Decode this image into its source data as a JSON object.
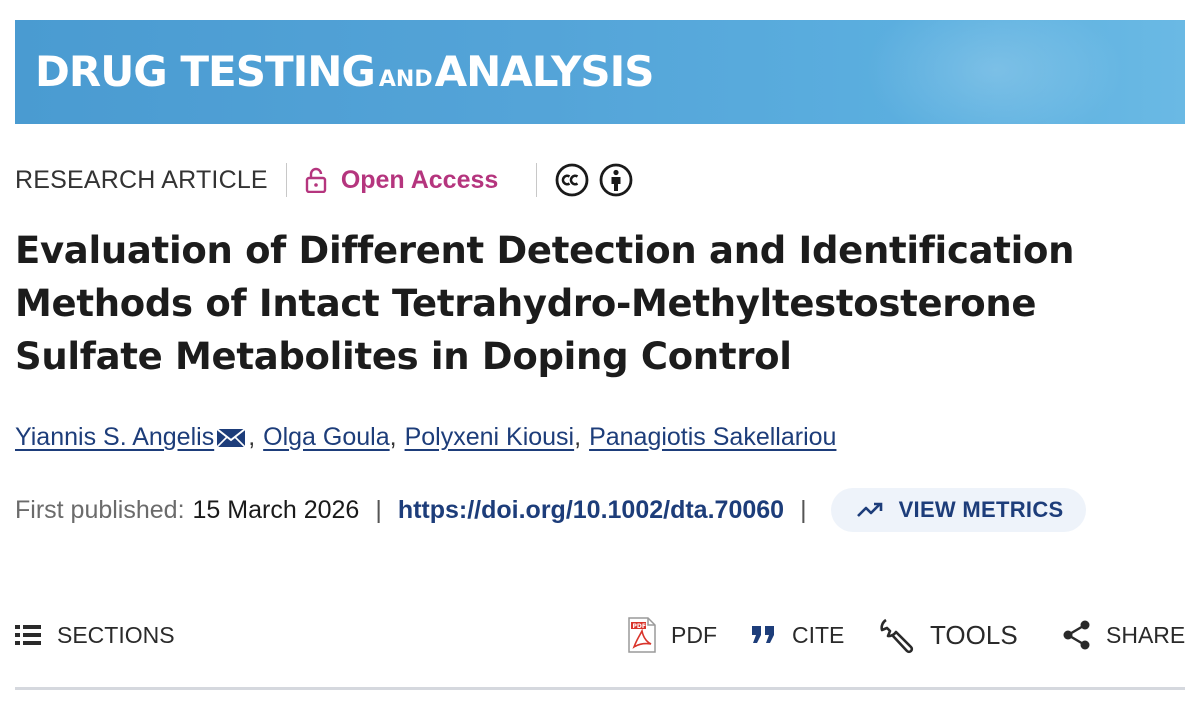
{
  "journal": {
    "title_part1": "DRUG TESTING",
    "title_part2": "AND",
    "title_part3": "ANALYSIS",
    "banner_color": "#54a4d8"
  },
  "meta": {
    "article_type": "RESEARCH ARTICLE",
    "access_label": "Open Access",
    "access_icon": "lock-open-icon",
    "access_color": "#b5357e",
    "license_icons": [
      "cc-icon",
      "attribution-icon"
    ]
  },
  "article": {
    "title_lines": [
      "Evaluation of Different Detection and Identification",
      "Methods of Intact Tetrahydro-Methyltestosterone",
      "Sulfate Metabolites in Doping Control"
    ]
  },
  "authors": [
    {
      "name": "Yiannis S. Angelis",
      "corresponding": true
    },
    {
      "name": "Olga Goula"
    },
    {
      "name": "Polyxeni Kiousi"
    },
    {
      "name": "Panagiotis Sakellariou"
    }
  ],
  "publication": {
    "label": "First published:",
    "date": "15 March 2026",
    "separator": "|",
    "doi": "https://doi.org/10.1002/dta.70060",
    "metrics_label": "VIEW METRICS"
  },
  "toolbar": {
    "sections_label": "SECTIONS",
    "pdf_label": "PDF",
    "cite_label": "CITE",
    "tools_label": "TOOLS",
    "share_label": "SHARE"
  },
  "colors": {
    "link": "#1d3d7a",
    "text": "#1a1a1a",
    "muted": "#6b6b6b",
    "pdf_red": "#d9342b"
  }
}
